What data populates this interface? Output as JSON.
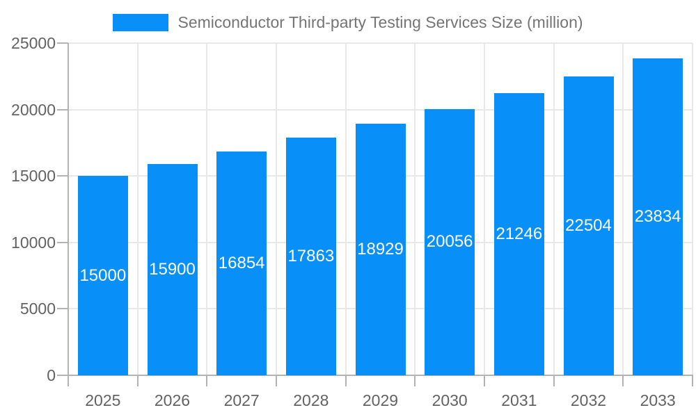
{
  "legend": {
    "series_label": "Semiconductor Third-party Testing Services Size (million)"
  },
  "chart_data": {
    "type": "bar",
    "title": "Semiconductor Third-party Testing Services Size (million)",
    "legend_entries": [
      "Semiconductor Third-party Testing Services Size (million)"
    ],
    "legend_position": "top-center",
    "categories": [
      "2025",
      "2026",
      "2027",
      "2028",
      "2029",
      "2030",
      "2031",
      "2032",
      "2033"
    ],
    "values": [
      15000,
      15900,
      16854,
      17863,
      18929,
      20056,
      21246,
      22504,
      23834
    ],
    "xlabel": "",
    "ylabel": "",
    "ylim": [
      0,
      25000
    ],
    "yticks": [
      0,
      5000,
      10000,
      15000,
      20000,
      25000
    ],
    "grid": true,
    "show_value_labels": true
  },
  "colors": {
    "bar": "#0890f8",
    "grid": "#e8e8e8",
    "axis": "#b3b3b3",
    "tick_label": "#636363",
    "legend_text": "#757575",
    "value_label": "#ffffff",
    "background": "#ffffff"
  }
}
